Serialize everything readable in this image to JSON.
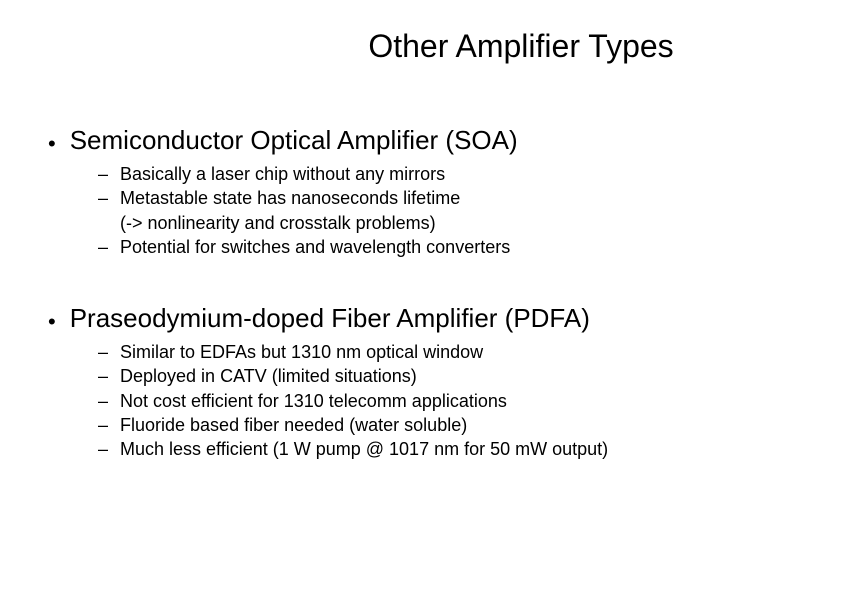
{
  "title": "Other Amplifier Types",
  "sections": [
    {
      "heading": "Semiconductor Optical Amplifier (SOA)",
      "items": [
        "Basically a laser chip without any mirrors",
        "Metastable state has nanoseconds lifetime\n(-> nonlinearity and crosstalk problems)",
        "Potential for switches and wavelength converters"
      ]
    },
    {
      "heading": "Praseodymium-doped Fiber Amplifier (PDFA)",
      "items": [
        "Similar to EDFAs but 1310 nm optical window",
        "Deployed in CATV (limited situations)",
        "Not cost efficient for 1310 telecomm applications",
        "Fluoride based fiber needed (water soluble)",
        "Much less efficient (1 W pump @ 1017 nm for 50 mW output)"
      ]
    }
  ],
  "colors": {
    "background": "#ffffff",
    "text": "#000000"
  },
  "typography": {
    "title_fontsize": 32,
    "heading_fontsize": 26,
    "item_fontsize": 18,
    "font_family": "Arial"
  }
}
